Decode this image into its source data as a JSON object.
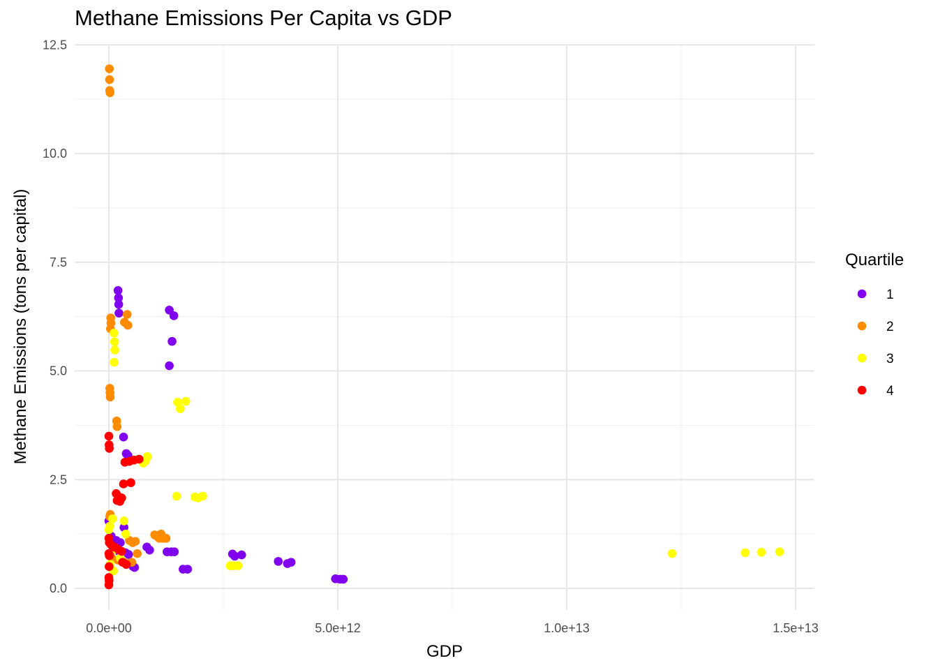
{
  "chart_data": {
    "type": "scatter",
    "title": "Methane Emissions Per Capita vs GDP",
    "xlabel": "GDP",
    "ylabel": "Methane Emissions (tons per capital)",
    "xlim": [
      -750000000000.0,
      15450000000000.0
    ],
    "ylim": [
      -0.5,
      12.5
    ],
    "x_ticks": [
      0,
      5000000000000.0,
      10000000000000.0,
      15000000000000.0
    ],
    "x_tick_labels": [
      "0.0e+00",
      "5.0e+12",
      "1.0e+13",
      "1.5e+13"
    ],
    "y_ticks": [
      0,
      2.5,
      5,
      7.5,
      10,
      12.5
    ],
    "y_tick_labels": [
      "0.0",
      "2.5",
      "5.0",
      "7.5",
      "10.0",
      "12.5"
    ],
    "grid": true,
    "legend": {
      "title": "Quartile",
      "position": "right"
    },
    "series": [
      {
        "name": "1",
        "color": "#8000F0",
        "points": [
          [
            200000000000.0,
            6.85
          ],
          [
            210000000000.0,
            6.68
          ],
          [
            215000000000.0,
            6.53
          ],
          [
            220000000000.0,
            6.33
          ],
          [
            1320000000000.0,
            6.4
          ],
          [
            1420000000000.0,
            6.27
          ],
          [
            1380000000000.0,
            5.68
          ],
          [
            1320000000000.0,
            5.12
          ],
          [
            320000000000.0,
            3.48
          ],
          [
            380000000000.0,
            3.1
          ],
          [
            420000000000.0,
            3.05
          ],
          [
            0,
            1.55
          ],
          [
            50000000000.0,
            1.2
          ],
          [
            160000000000.0,
            1.1
          ],
          [
            250000000000.0,
            1.05
          ],
          [
            330000000000.0,
            1.4
          ],
          [
            100000000000.0,
            0.9
          ],
          [
            220000000000.0,
            0.85
          ],
          [
            360000000000.0,
            0.82
          ],
          [
            430000000000.0,
            0.78
          ],
          [
            530000000000.0,
            0.5
          ],
          [
            560000000000.0,
            0.48
          ],
          [
            830000000000.0,
            0.95
          ],
          [
            890000000000.0,
            0.88
          ],
          [
            1270000000000.0,
            0.84
          ],
          [
            1360000000000.0,
            0.84
          ],
          [
            1430000000000.0,
            0.84
          ],
          [
            1620000000000.0,
            0.44
          ],
          [
            1720000000000.0,
            0.44
          ],
          [
            2700000000000.0,
            0.79
          ],
          [
            2750000000000.0,
            0.74
          ],
          [
            2900000000000.0,
            0.77
          ],
          [
            3700000000000.0,
            0.62
          ],
          [
            3900000000000.0,
            0.57
          ],
          [
            3980000000000.0,
            0.6
          ],
          [
            4950000000000.0,
            0.22
          ],
          [
            5050000000000.0,
            0.21
          ],
          [
            5120000000000.0,
            0.21
          ]
        ]
      },
      {
        "name": "2",
        "color": "#FF8C00",
        "points": [
          [
            10000000000.0,
            11.95
          ],
          [
            15000000000.0,
            11.7
          ],
          [
            18000000000.0,
            11.45
          ],
          [
            25000000000.0,
            11.4
          ],
          [
            40000000000.0,
            6.22
          ],
          [
            45000000000.0,
            6.1
          ],
          [
            35000000000.0,
            5.97
          ],
          [
            340000000000.0,
            6.12
          ],
          [
            400000000000.0,
            6.3
          ],
          [
            415000000000.0,
            6.05
          ],
          [
            20000000000.0,
            4.6
          ],
          [
            25000000000.0,
            4.5
          ],
          [
            30000000000.0,
            4.4
          ],
          [
            170000000000.0,
            3.85
          ],
          [
            180000000000.0,
            3.72
          ],
          [
            20000000000.0,
            1.65
          ],
          [
            30000000000.0,
            1.7
          ],
          [
            50000000000.0,
            0.72
          ],
          [
            200000000000.0,
            0.65
          ],
          [
            320000000000.0,
            0.6
          ],
          [
            380000000000.0,
            0.58
          ],
          [
            450000000000.0,
            1.1
          ],
          [
            520000000000.0,
            1.05
          ],
          [
            580000000000.0,
            1.08
          ],
          [
            620000000000.0,
            0.8
          ],
          [
            500000000000.0,
            0.6
          ],
          [
            1000000000000.0,
            1.23
          ],
          [
            1050000000000.0,
            1.2
          ],
          [
            1100000000000.0,
            1.15
          ],
          [
            1140000000000.0,
            1.25
          ],
          [
            1180000000000.0,
            1.15
          ],
          [
            1250000000000.0,
            1.15
          ]
        ]
      },
      {
        "name": "3",
        "color": "#FFFF00",
        "points": [
          [
            110000000000.0,
            5.87
          ],
          [
            125000000000.0,
            5.67
          ],
          [
            130000000000.0,
            5.48
          ],
          [
            115000000000.0,
            5.2
          ],
          [
            1500000000000.0,
            4.28
          ],
          [
            1560000000000.0,
            4.13
          ],
          [
            1680000000000.0,
            4.3
          ],
          [
            750000000000.0,
            2.88
          ],
          [
            800000000000.0,
            2.93
          ],
          [
            840000000000.0,
            3.03
          ],
          [
            1480000000000.0,
            2.12
          ],
          [
            1880000000000.0,
            2.1
          ],
          [
            1950000000000.0,
            2.08
          ],
          [
            2050000000000.0,
            2.12
          ],
          [
            0,
            1.35
          ],
          [
            20000000000.0,
            1.43
          ],
          [
            80000000000.0,
            1.6
          ],
          [
            330000000000.0,
            1.55
          ],
          [
            370000000000.0,
            1.25
          ],
          [
            150000000000.0,
            0.9
          ],
          [
            250000000000.0,
            0.7
          ],
          [
            100000000000.0,
            0.4
          ],
          [
            30000000000.0,
            0.55
          ],
          [
            10000000000.0,
            0.5
          ],
          [
            2650000000000.0,
            0.52
          ],
          [
            2720000000000.0,
            0.52
          ],
          [
            2820000000000.0,
            0.52
          ],
          [
            12300000000000.0,
            0.8
          ],
          [
            13900000000000.0,
            0.82
          ],
          [
            14250000000000.0,
            0.83
          ],
          [
            14650000000000.0,
            0.84
          ]
        ]
      },
      {
        "name": "4",
        "color": "#FF0000",
        "points": [
          [
            0,
            3.5
          ],
          [
            5000000000.0,
            3.3
          ],
          [
            10000000000.0,
            3.22
          ],
          [
            350000000000.0,
            2.9
          ],
          [
            450000000000.0,
            2.92
          ],
          [
            550000000000.0,
            2.95
          ],
          [
            660000000000.0,
            2.97
          ],
          [
            320000000000.0,
            2.4
          ],
          [
            480000000000.0,
            2.43
          ],
          [
            160000000000.0,
            2.18
          ],
          [
            220000000000.0,
            2.1
          ],
          [
            280000000000.0,
            2.08
          ],
          [
            180000000000.0,
            2.02
          ],
          [
            240000000000.0,
            2.0
          ],
          [
            0,
            1.15
          ],
          [
            10000000000.0,
            1.05
          ],
          [
            50000000000.0,
            1.0
          ],
          [
            120000000000.0,
            0.95
          ],
          [
            200000000000.0,
            0.9
          ],
          [
            280000000000.0,
            0.85
          ],
          [
            300000000000.0,
            0.6
          ],
          [
            380000000000.0,
            0.55
          ],
          [
            0,
            0.8
          ],
          [
            10000000000.0,
            0.75
          ],
          [
            5000000000.0,
            0.5
          ],
          [
            0,
            0.25
          ],
          [
            5000000000.0,
            0.18
          ],
          [
            0,
            0.08
          ]
        ]
      }
    ]
  }
}
